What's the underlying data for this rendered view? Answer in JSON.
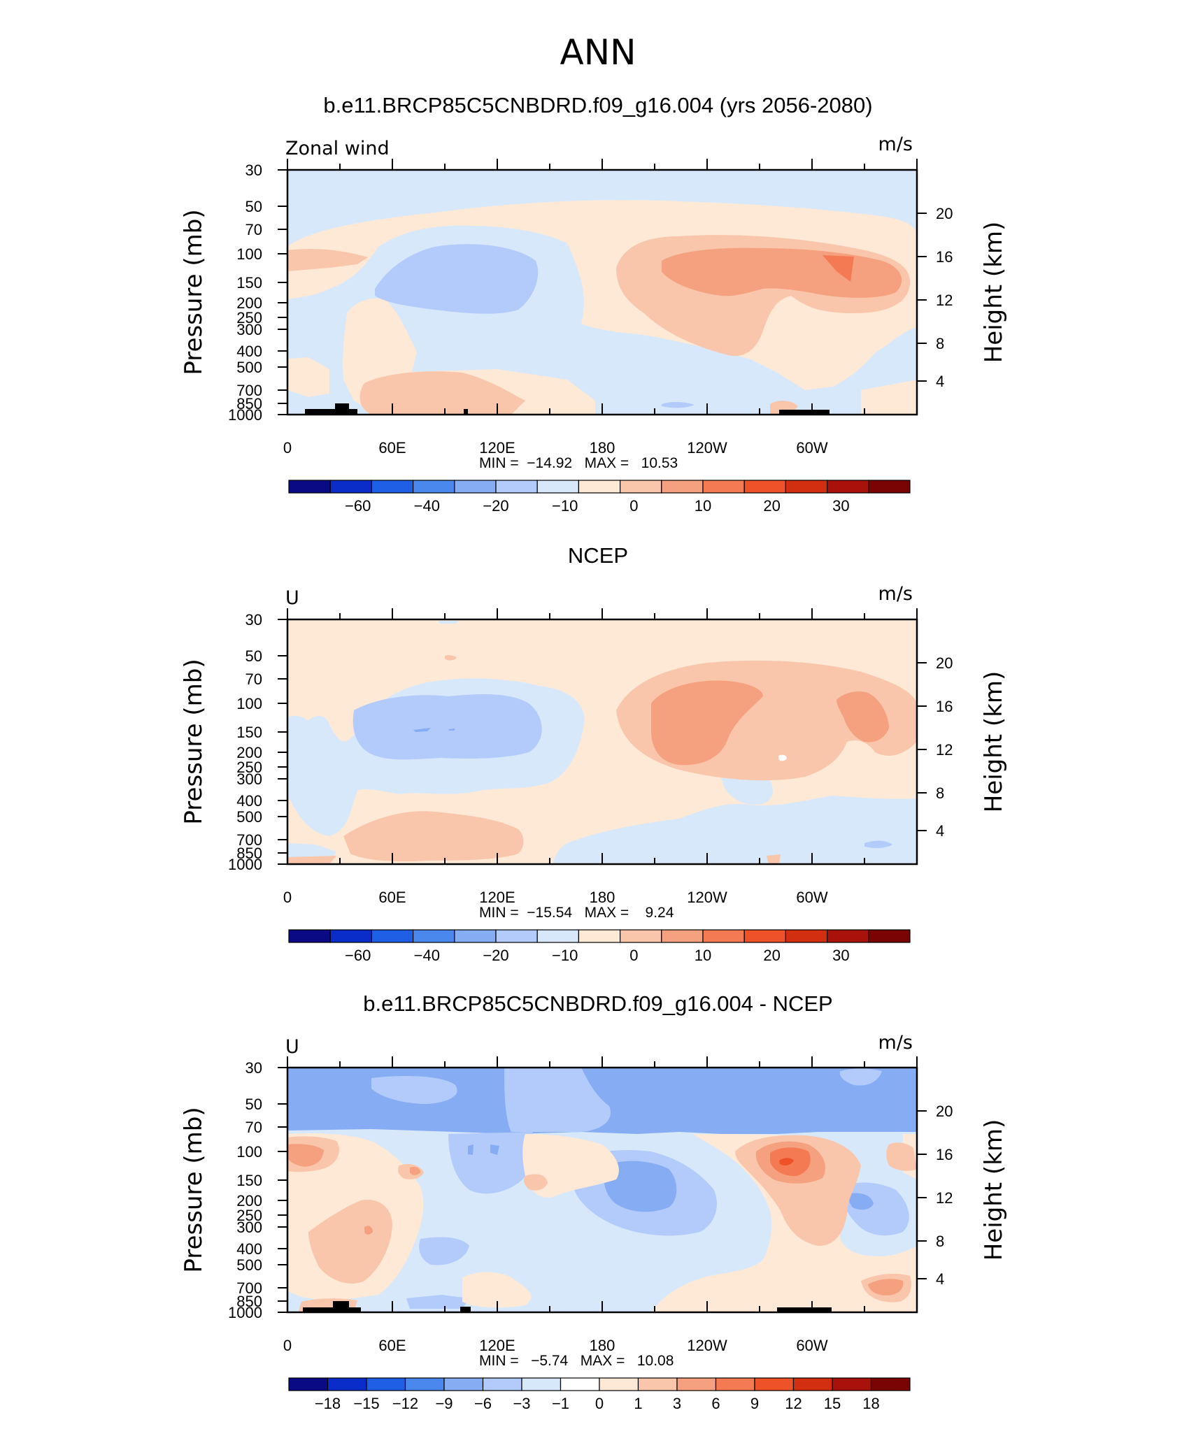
{
  "page_title": "ANN",
  "chart_data": [
    {
      "type": "heatmap",
      "title": "b.e11.BRCP85C5CNBDRD.f09_g16.004 (yrs 2056-2080)",
      "variable_label": "Zonal wind",
      "units": "m/s",
      "ylabel": "Pressure (mb)",
      "ylabel_right": "Height (km)",
      "x_ticks": [
        "0",
        "60E",
        "120E",
        "180",
        "120W",
        "60W"
      ],
      "y_ticks": [
        "30",
        "50",
        "70",
        "100",
        "150",
        "200",
        "250",
        "300",
        "400",
        "500",
        "700",
        "850",
        "1000"
      ],
      "y_ticks_right": [
        "20",
        "16",
        "12",
        "8",
        "4"
      ],
      "stats_text": "MIN =  −14.92   MAX =   10.53",
      "min": -14.92,
      "max": 10.53,
      "colorbar_labels": [
        "−60",
        "−40",
        "−20",
        "−10",
        "0",
        "10",
        "20",
        "30"
      ],
      "colorbar_colors": [
        "#0a0a85",
        "#0a2cc8",
        "#1f5fe6",
        "#4a88ed",
        "#86acf4",
        "#b3cbfa",
        "#d8e8fb",
        "#fde9d6",
        "#f9c6ab",
        "#f5a07e",
        "#f37a52",
        "#ee5228",
        "#d22e10",
        "#a8120a",
        "#7a0404"
      ]
    },
    {
      "type": "heatmap",
      "title": "NCEP",
      "variable_label": "U",
      "units": "m/s",
      "ylabel": "Pressure (mb)",
      "ylabel_right": "Height (km)",
      "x_ticks": [
        "0",
        "60E",
        "120E",
        "180",
        "120W",
        "60W"
      ],
      "y_ticks": [
        "30",
        "50",
        "70",
        "100",
        "150",
        "200",
        "250",
        "300",
        "400",
        "500",
        "700",
        "850",
        "1000"
      ],
      "y_ticks_right": [
        "20",
        "16",
        "12",
        "8",
        "4"
      ],
      "stats_text": "MIN =  −15.54   MAX =    9.24",
      "min": -15.54,
      "max": 9.24,
      "colorbar_labels": [
        "−60",
        "−40",
        "−20",
        "−10",
        "0",
        "10",
        "20",
        "30"
      ],
      "colorbar_colors": [
        "#0a0a85",
        "#0a2cc8",
        "#1f5fe6",
        "#4a88ed",
        "#86acf4",
        "#b3cbfa",
        "#d8e8fb",
        "#fde9d6",
        "#f9c6ab",
        "#f5a07e",
        "#f37a52",
        "#ee5228",
        "#d22e10",
        "#a8120a",
        "#7a0404"
      ]
    },
    {
      "type": "heatmap",
      "title": "b.e11.BRCP85C5CNBDRD.f09_g16.004 - NCEP",
      "variable_label": "U",
      "units": "m/s",
      "ylabel": "Pressure (mb)",
      "ylabel_right": "Height (km)",
      "x_ticks": [
        "0",
        "60E",
        "120E",
        "180",
        "120W",
        "60W"
      ],
      "y_ticks": [
        "30",
        "50",
        "70",
        "100",
        "150",
        "200",
        "250",
        "300",
        "400",
        "500",
        "700",
        "850",
        "1000"
      ],
      "y_ticks_right": [
        "20",
        "16",
        "12",
        "8",
        "4"
      ],
      "stats_text": "MIN =   −5.74   MAX =   10.08",
      "min": -5.74,
      "max": 10.08,
      "colorbar_labels": [
        "−18",
        "−15",
        "−12",
        "−9",
        "−6",
        "−3",
        "−1",
        "0",
        "1",
        "3",
        "6",
        "9",
        "12",
        "15",
        "18"
      ],
      "colorbar_colors": [
        "#0a0a85",
        "#0a2cc8",
        "#1f5fe6",
        "#4a88ed",
        "#86acf4",
        "#b3cbfa",
        "#d8e8fb",
        "#ffffff",
        "#fde9d6",
        "#f9c6ab",
        "#f5a07e",
        "#f37a52",
        "#ee5228",
        "#d22e10",
        "#a8120a",
        "#7a0404"
      ]
    }
  ]
}
